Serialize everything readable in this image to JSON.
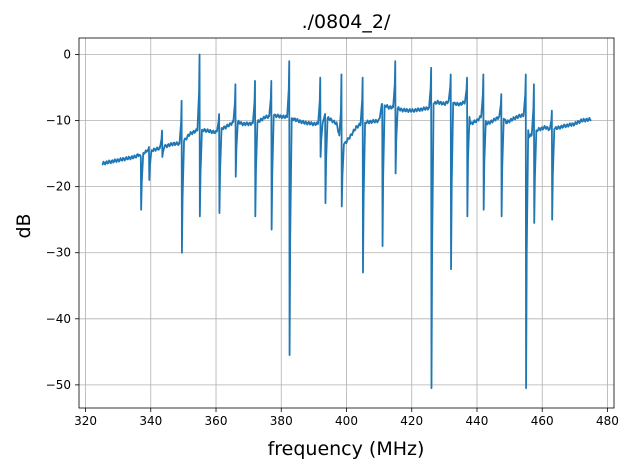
{
  "chart_data": {
    "type": "line",
    "title": "./0804_2/",
    "xlabel": "frequency (MHz)",
    "ylabel": "dB",
    "xlim": [
      318,
      482
    ],
    "ylim": [
      -53.5,
      2.5
    ],
    "xticks": [
      320,
      340,
      360,
      380,
      400,
      420,
      440,
      460,
      480
    ],
    "yticks": [
      0,
      -10,
      -20,
      -30,
      -40,
      -50
    ],
    "xtick_labels": [
      "320",
      "340",
      "360",
      "380",
      "400",
      "420",
      "440",
      "460",
      "480"
    ],
    "ytick_labels": [
      "0",
      "−10",
      "−20",
      "−30",
      "−40",
      "−50"
    ],
    "grid": true,
    "line_color": "#1f77b4",
    "series": [
      {
        "x": [
          325,
          330,
          335,
          337,
          340,
          342,
          345,
          347,
          349.5,
          352,
          355,
          357,
          360,
          361,
          363,
          366,
          368,
          370,
          372.5,
          375,
          377.5,
          380,
          382.5,
          385,
          387,
          390,
          392.5,
          393.5,
          395,
          397,
          398.5,
          399.5,
          401,
          403,
          405,
          407,
          410,
          411,
          413,
          415,
          417,
          420,
          423,
          426,
          426.5,
          428,
          430,
          432,
          433,
          435,
          437,
          438,
          440,
          442,
          443,
          445,
          447.5,
          449,
          452,
          455,
          456,
          458,
          461,
          463,
          464,
          467,
          470,
          472,
          475
        ],
        "y": [
          -16.5,
          -16.0,
          -15.5,
          -15.0,
          -14.5,
          -14.3,
          -13.8,
          -13.5,
          -13.5,
          -12.0,
          -11.3,
          -11.5,
          -11.8,
          -11.2,
          -11.0,
          -10.0,
          -10.5,
          -10.5,
          -10.3,
          -9.5,
          -9.2,
          -9.4,
          -9.5,
          -10.0,
          -10.3,
          -10.5,
          -10.5,
          -9.5,
          -9.8,
          -10.5,
          -13.8,
          -13.5,
          -12.5,
          -11.0,
          -10.3,
          -10.2,
          -10.0,
          -7.5,
          -8.0,
          -8.0,
          -8.4,
          -8.5,
          -8.3,
          -8.0,
          -7.5,
          -7.2,
          -7.5,
          -6.8,
          -7.5,
          -7.5,
          -7.0,
          -10.5,
          -10.0,
          -9.0,
          -10.5,
          -10.0,
          -9.2,
          -10.3,
          -9.5,
          -9.0,
          -12.5,
          -11.5,
          -11.0,
          -11.5,
          -11.2,
          -10.8,
          -10.5,
          -10.0,
          -9.8
        ]
      }
    ],
    "resonances": [
      {
        "f": 337.0,
        "dip": -23.5,
        "peak": -15.5
      },
      {
        "f": 339.5,
        "dip": -19.0,
        "peak": -14.0
      },
      {
        "f": 343.5,
        "dip": -15.5,
        "peak": -11.5
      },
      {
        "f": 349.5,
        "dip": -30.0,
        "peak": -7.0
      },
      {
        "f": 355.0,
        "dip": -24.5,
        "peak": 0.0
      },
      {
        "f": 361.0,
        "dip": -24.0,
        "peak": -9.0
      },
      {
        "f": 366.0,
        "dip": -18.5,
        "peak": -4.5
      },
      {
        "f": 372.0,
        "dip": -24.5,
        "peak": -4.0
      },
      {
        "f": 377.0,
        "dip": -26.5,
        "peak": -4.0
      },
      {
        "f": 382.5,
        "dip": -45.5,
        "peak": -1.0
      },
      {
        "f": 392.0,
        "dip": -15.5,
        "peak": -3.5
      },
      {
        "f": 393.5,
        "dip": -22.5,
        "peak": -9.0
      },
      {
        "f": 398.5,
        "dip": -23.0,
        "peak": -3.0
      },
      {
        "f": 405.0,
        "dip": -33.0,
        "peak": -3.5
      },
      {
        "f": 411.0,
        "dip": -29.0,
        "peak": -7.5
      },
      {
        "f": 415.0,
        "dip": -18.0,
        "peak": -1.0
      },
      {
        "f": 426.0,
        "dip": -50.5,
        "peak": -2.0
      },
      {
        "f": 432.0,
        "dip": -32.5,
        "peak": -3.0
      },
      {
        "f": 437.0,
        "dip": -24.5,
        "peak": -3.5
      },
      {
        "f": 442.0,
        "dip": -23.5,
        "peak": -3.0
      },
      {
        "f": 447.5,
        "dip": -24.5,
        "peak": -6.0
      },
      {
        "f": 455.0,
        "dip": -50.5,
        "peak": -3.0
      },
      {
        "f": 457.5,
        "dip": -25.5,
        "peak": -4.5
      },
      {
        "f": 463.0,
        "dip": -25.0,
        "peak": -8.5
      }
    ]
  }
}
